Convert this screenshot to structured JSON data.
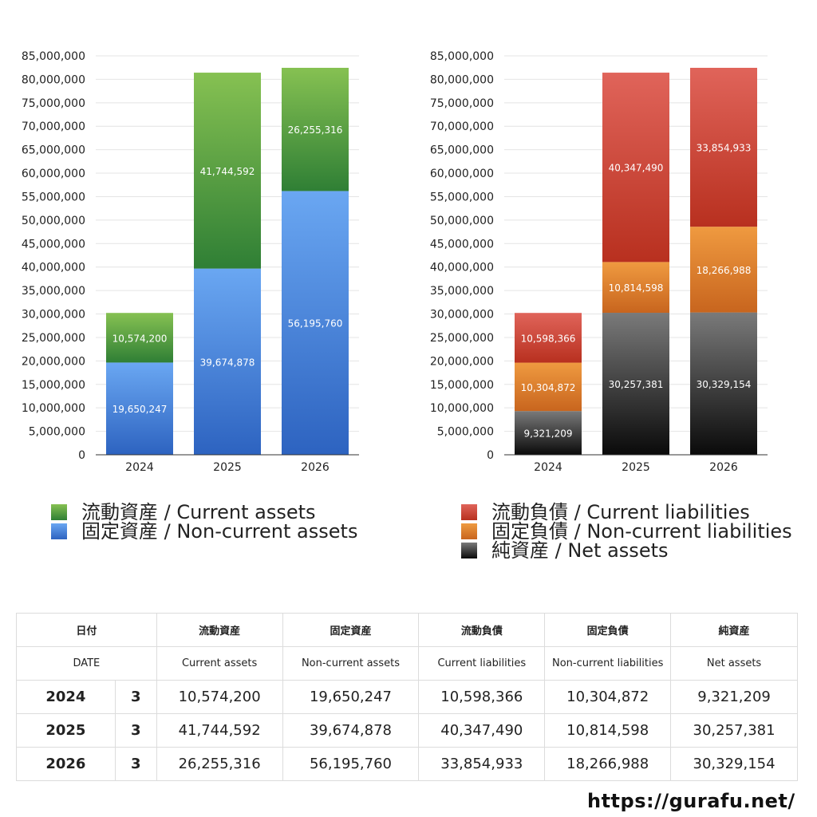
{
  "chart_data": [
    {
      "type": "bar",
      "stacked": true,
      "categories": [
        "2024",
        "2025",
        "2026"
      ],
      "ylim": [
        0,
        85000000
      ],
      "yticks": [
        "0",
        "5,000,000",
        "10,000,000",
        "15,000,000",
        "20,000,000",
        "25,000,000",
        "30,000,000",
        "35,000,000",
        "40,000,000",
        "45,000,000",
        "50,000,000",
        "55,000,000",
        "60,000,000",
        "65,000,000",
        "70,000,000",
        "75,000,000",
        "80,000,000",
        "85,000,000"
      ],
      "grid": true,
      "legend_position": "bottom",
      "series": [
        {
          "name": "固定資産 / Non-current assets",
          "values": [
            19650247,
            39674878,
            56195760
          ],
          "labels": [
            "19,650,247",
            "39,674,878",
            "56,195,760"
          ],
          "color_top": "#6aa7f2",
          "color_bottom": "#2d63c0"
        },
        {
          "name": "流動資産 / Current assets",
          "values": [
            10574200,
            41744592,
            26255316
          ],
          "labels": [
            "10,574,200",
            "41,744,592",
            "26,255,316"
          ],
          "color_top": "#86c152",
          "color_bottom": "#2f7f35"
        }
      ]
    },
    {
      "type": "bar",
      "stacked": true,
      "categories": [
        "2024",
        "2025",
        "2026"
      ],
      "ylim": [
        0,
        85000000
      ],
      "yticks": [
        "0",
        "5,000,000",
        "10,000,000",
        "15,000,000",
        "20,000,000",
        "25,000,000",
        "30,000,000",
        "35,000,000",
        "40,000,000",
        "45,000,000",
        "50,000,000",
        "55,000,000",
        "60,000,000",
        "65,000,000",
        "70,000,000",
        "75,000,000",
        "80,000,000",
        "85,000,000"
      ],
      "grid": true,
      "legend_position": "bottom",
      "series": [
        {
          "name": "純資産 / Net assets",
          "values": [
            9321209,
            30257381,
            30329154
          ],
          "labels": [
            "9,321,209",
            "30,257,381",
            "30,329,154"
          ],
          "color_top": "#7a7a7a",
          "color_bottom": "#0a0a0a"
        },
        {
          "name": "固定負債 / Non-current liabilities",
          "values": [
            10304872,
            10814598,
            18266988
          ],
          "labels": [
            "10,304,872",
            "10,814,598",
            "18,266,988"
          ],
          "color_top": "#ef9a40",
          "color_bottom": "#c8651e"
        },
        {
          "name": "流動負債 / Current liabilities",
          "values": [
            10598366,
            40347490,
            33854933
          ],
          "labels": [
            "10,598,366",
            "40,347,490",
            "33,854,933"
          ],
          "color_top": "#e0645a",
          "color_bottom": "#b8301f"
        }
      ]
    }
  ],
  "legend_left": [
    {
      "label": "流動資産 / Current assets",
      "color_top": "#86c152",
      "color_bottom": "#2f7f35"
    },
    {
      "label": "固定資産 / Non-current assets",
      "color_top": "#6aa7f2",
      "color_bottom": "#2d63c0"
    }
  ],
  "legend_right": [
    {
      "label": "流動負債 / Current liabilities",
      "color_top": "#e0645a",
      "color_bottom": "#b8301f"
    },
    {
      "label": "固定負債 / Non-current liabilities",
      "color_top": "#ef9a40",
      "color_bottom": "#c8651e"
    },
    {
      "label": "純資産 / Net assets",
      "color_top": "#7a7a7a",
      "color_bottom": "#0a0a0a"
    }
  ],
  "table": {
    "headers_jp": [
      "日付",
      "流動資産",
      "固定資産",
      "流動負債",
      "固定負債",
      "純資産"
    ],
    "headers_en": [
      "DATE",
      "Current assets",
      "Non-current assets",
      "Current liabilities",
      "Non-current liabilities",
      "Net assets"
    ],
    "rows": [
      {
        "year": "2024",
        "month": "3",
        "cells": [
          "10,574,200",
          "19,650,247",
          "10,598,366",
          "10,304,872",
          "9,321,209"
        ]
      },
      {
        "year": "2025",
        "month": "3",
        "cells": [
          "41,744,592",
          "39,674,878",
          "40,347,490",
          "10,814,598",
          "30,257,381"
        ]
      },
      {
        "year": "2026",
        "month": "3",
        "cells": [
          "26,255,316",
          "56,195,760",
          "33,854,933",
          "18,266,988",
          "30,329,154"
        ]
      }
    ]
  },
  "footer": {
    "url": "https://gurafu.net/"
  }
}
